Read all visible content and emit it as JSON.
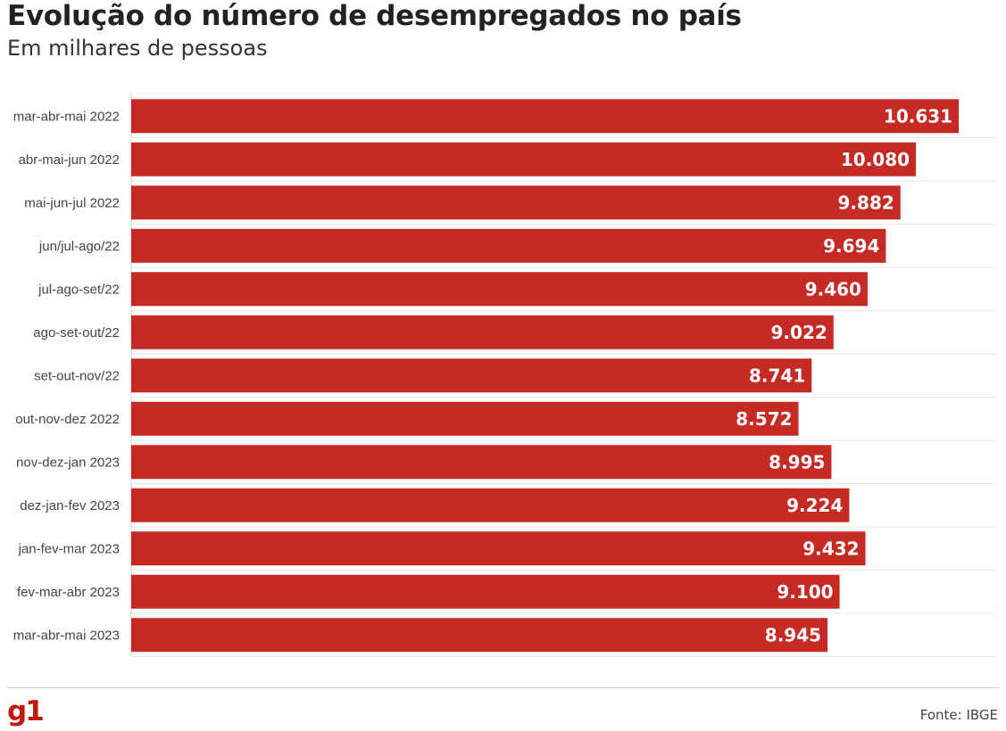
{
  "title": "Evolução do número de desempregados no país",
  "subtitle": "Em milhares de pessoas",
  "source": "Fonte: IBGE",
  "logo": "g1",
  "colors": {
    "bar": "#c62a25",
    "grid": "#e6e6e6",
    "logo": "#c4170c"
  },
  "chart_data": {
    "type": "bar",
    "orientation": "horizontal",
    "title": "Evolução do número de desempregados no país",
    "subtitle": "Em milhares de pessoas",
    "categories": [
      "mar-abr-mai 2022",
      "abr-mai-jun 2022",
      "mai-jun-jul 2022",
      "jun/jul-ago/22",
      "jul-ago-set/22",
      "ago-set-out/22",
      "set-out-nov/22",
      "out-nov-dez 2022",
      "nov-dez-jan 2023",
      "dez-jan-fev 2023",
      "jan-fev-mar 2023",
      "fev-mar-abr 2023",
      "mar-abr-mai 2023"
    ],
    "values": [
      10631,
      10080,
      9882,
      9694,
      9460,
      9022,
      8741,
      8572,
      8995,
      9224,
      9432,
      9100,
      8945
    ],
    "value_labels": [
      "10.631",
      "10.080",
      "9.882",
      "9.694",
      "9.460",
      "9.022",
      "8.741",
      "8.572",
      "8.995",
      "9.224",
      "9.432",
      "9.100",
      "8.945"
    ],
    "xlim": [
      0,
      11100
    ],
    "grid": true,
    "legend": "none"
  }
}
